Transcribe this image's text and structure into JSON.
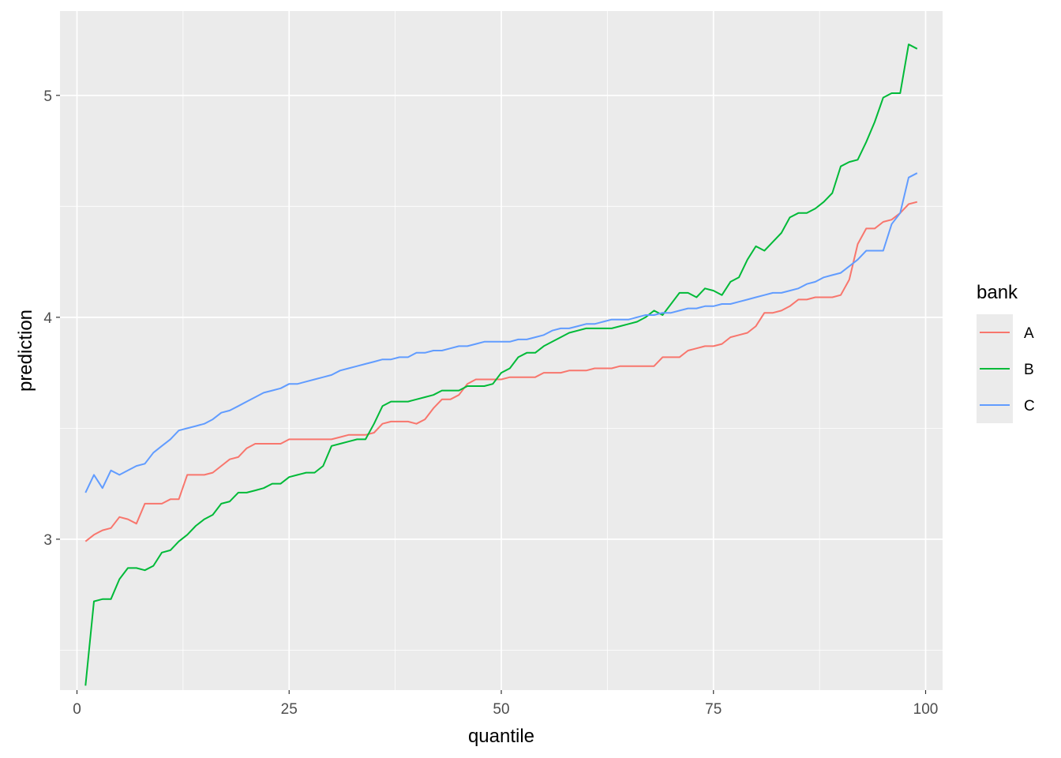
{
  "chart_data": {
    "type": "line",
    "title": "",
    "xlabel": "quantile",
    "ylabel": "prediction",
    "xlim": [
      -2,
      102
    ],
    "ylim": [
      2.32,
      5.38
    ],
    "xticks": [
      0,
      25,
      50,
      75,
      100
    ],
    "xtick_labels": [
      "0",
      "25",
      "50",
      "75",
      "100"
    ],
    "yticks": [
      3,
      4,
      5
    ],
    "ytick_labels": [
      "3",
      "4",
      "5"
    ],
    "grid": true,
    "legend": {
      "title": "bank",
      "position": "right"
    },
    "x": [
      1,
      2,
      3,
      4,
      5,
      6,
      7,
      8,
      9,
      10,
      11,
      12,
      13,
      14,
      15,
      16,
      17,
      18,
      19,
      20,
      21,
      22,
      23,
      24,
      25,
      26,
      27,
      28,
      29,
      30,
      31,
      32,
      33,
      34,
      35,
      36,
      37,
      38,
      39,
      40,
      41,
      42,
      43,
      44,
      45,
      46,
      47,
      48,
      49,
      50,
      51,
      52,
      53,
      54,
      55,
      56,
      57,
      58,
      59,
      60,
      61,
      62,
      63,
      64,
      65,
      66,
      67,
      68,
      69,
      70,
      71,
      72,
      73,
      74,
      75,
      76,
      77,
      78,
      79,
      80,
      81,
      82,
      83,
      84,
      85,
      86,
      87,
      88,
      89,
      90,
      91,
      92,
      93,
      94,
      95,
      96,
      97,
      98,
      99
    ],
    "series": [
      {
        "name": "A",
        "color": "#F8766D",
        "values": [
          2.99,
          3.02,
          3.04,
          3.05,
          3.1,
          3.09,
          3.07,
          3.16,
          3.16,
          3.16,
          3.18,
          3.18,
          3.29,
          3.29,
          3.29,
          3.3,
          3.33,
          3.36,
          3.37,
          3.41,
          3.43,
          3.43,
          3.43,
          3.43,
          3.45,
          3.45,
          3.45,
          3.45,
          3.45,
          3.45,
          3.46,
          3.47,
          3.47,
          3.47,
          3.48,
          3.52,
          3.53,
          3.53,
          3.53,
          3.52,
          3.54,
          3.59,
          3.63,
          3.63,
          3.65,
          3.7,
          3.72,
          3.72,
          3.72,
          3.72,
          3.73,
          3.73,
          3.73,
          3.73,
          3.75,
          3.75,
          3.75,
          3.76,
          3.76,
          3.76,
          3.77,
          3.77,
          3.77,
          3.78,
          3.78,
          3.78,
          3.78,
          3.78,
          3.82,
          3.82,
          3.82,
          3.85,
          3.86,
          3.87,
          3.87,
          3.88,
          3.91,
          3.92,
          3.93,
          3.96,
          4.02,
          4.02,
          4.03,
          4.05,
          4.08,
          4.08,
          4.09,
          4.09,
          4.09,
          4.1,
          4.17,
          4.33,
          4.4,
          4.4,
          4.43,
          4.44,
          4.47,
          4.51,
          4.52
        ]
      },
      {
        "name": "B",
        "color": "#00BA38",
        "values": [
          2.34,
          2.72,
          2.73,
          2.73,
          2.82,
          2.87,
          2.87,
          2.86,
          2.88,
          2.94,
          2.95,
          2.99,
          3.02,
          3.06,
          3.09,
          3.11,
          3.16,
          3.17,
          3.21,
          3.21,
          3.22,
          3.23,
          3.25,
          3.25,
          3.28,
          3.29,
          3.3,
          3.3,
          3.33,
          3.42,
          3.43,
          3.44,
          3.45,
          3.45,
          3.52,
          3.6,
          3.62,
          3.62,
          3.62,
          3.63,
          3.64,
          3.65,
          3.67,
          3.67,
          3.67,
          3.69,
          3.69,
          3.69,
          3.7,
          3.75,
          3.77,
          3.82,
          3.84,
          3.84,
          3.87,
          3.89,
          3.91,
          3.93,
          3.94,
          3.95,
          3.95,
          3.95,
          3.95,
          3.96,
          3.97,
          3.98,
          4.0,
          4.03,
          4.01,
          4.06,
          4.11,
          4.11,
          4.09,
          4.13,
          4.12,
          4.1,
          4.16,
          4.18,
          4.26,
          4.32,
          4.3,
          4.34,
          4.38,
          4.45,
          4.47,
          4.47,
          4.49,
          4.52,
          4.56,
          4.68,
          4.7,
          4.71,
          4.79,
          4.88,
          4.99,
          5.01,
          5.01,
          5.23,
          5.21
        ]
      },
      {
        "name": "C",
        "color": "#619CFF",
        "values": [
          3.21,
          3.29,
          3.23,
          3.31,
          3.29,
          3.31,
          3.33,
          3.34,
          3.39,
          3.42,
          3.45,
          3.49,
          3.5,
          3.51,
          3.52,
          3.54,
          3.57,
          3.58,
          3.6,
          3.62,
          3.64,
          3.66,
          3.67,
          3.68,
          3.7,
          3.7,
          3.71,
          3.72,
          3.73,
          3.74,
          3.76,
          3.77,
          3.78,
          3.79,
          3.8,
          3.81,
          3.81,
          3.82,
          3.82,
          3.84,
          3.84,
          3.85,
          3.85,
          3.86,
          3.87,
          3.87,
          3.88,
          3.89,
          3.89,
          3.89,
          3.89,
          3.9,
          3.9,
          3.91,
          3.92,
          3.94,
          3.95,
          3.95,
          3.96,
          3.97,
          3.97,
          3.98,
          3.99,
          3.99,
          3.99,
          4.0,
          4.01,
          4.01,
          4.02,
          4.02,
          4.03,
          4.04,
          4.04,
          4.05,
          4.05,
          4.06,
          4.06,
          4.07,
          4.08,
          4.09,
          4.1,
          4.11,
          4.11,
          4.12,
          4.13,
          4.15,
          4.16,
          4.18,
          4.19,
          4.2,
          4.23,
          4.26,
          4.3,
          4.3,
          4.3,
          4.42,
          4.47,
          4.63,
          4.65
        ]
      }
    ]
  }
}
